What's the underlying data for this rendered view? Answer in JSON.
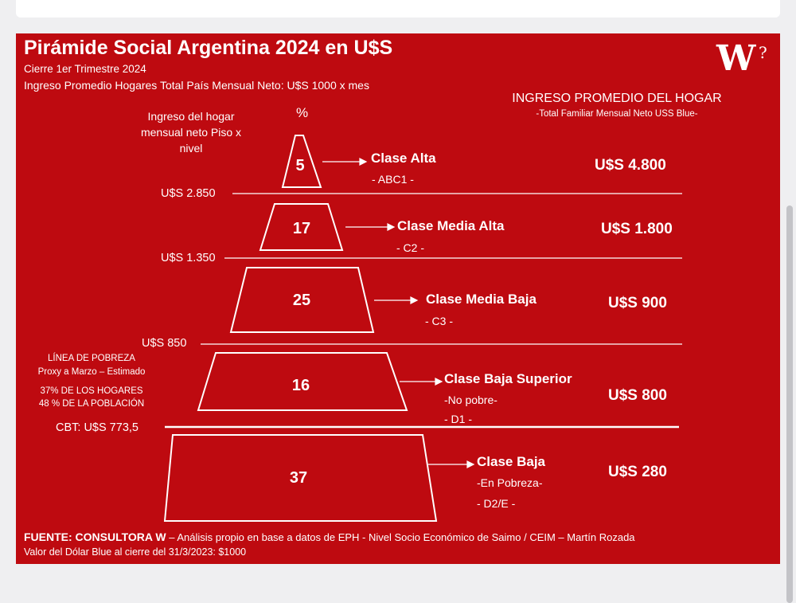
{
  "title": "Pirámide Social Argentina 2024 en U$S",
  "subtitle": "Cierre 1er Trimestre 2024",
  "subtitle2": "Ingreso Promedio Hogares Total País Mensual Neto: U$S 1000 x mes",
  "logo": "W",
  "logo_mark": "?",
  "header": {
    "left_col": "Ingreso del hogar mensual neto Piso x nivel",
    "pct_col": "%",
    "right_col": "INGRESO PROMEDIO DEL HOGAR",
    "right_sub": "-Total Familiar Mensual Neto USS Blue-"
  },
  "levels": [
    {
      "pct": "5",
      "name": "Clase Alta",
      "code": "- ABC1 -",
      "income": "U$S 4.800"
    },
    {
      "pct": "17",
      "name": "Clase Media Alta",
      "code": "- C2 -",
      "income": "U$S 1.800"
    },
    {
      "pct": "25",
      "name": "Clase Media Baja",
      "code": "- C3 -",
      "income": "U$S 900"
    },
    {
      "pct": "16",
      "name": "Clase Baja Superior",
      "code": "-No pobre-",
      "code2": "- D1 -",
      "income": "U$S 800"
    },
    {
      "pct": "37",
      "name": "Clase Baja",
      "code": "-En Pobreza-",
      "code2": "- D2/E -",
      "income": "U$S 280"
    }
  ],
  "thresholds": [
    "U$S 2.850",
    "U$S 1.350",
    "U$S 850",
    "CBT: U$S 773,5"
  ],
  "poverty": {
    "title": "LÍNEA DE POBREZA",
    "proxy": "Proxy a Marzo – Estimado",
    "households": "37% DE LOS HOGARES",
    "population": "48 % DE LA POBLACIÓN"
  },
  "source": {
    "label": "FUENTE: CONSULTORA W",
    "text": " – Análisis propio en base a datos de EPH - Nivel Socio Económico de Saimo / CEIM – Martín Rozada",
    "dollar": "Valor del Dólar Blue al cierre del 31/3/2023: $1000"
  },
  "colors": {
    "background": "#be0a10",
    "text": "#ffffff"
  }
}
